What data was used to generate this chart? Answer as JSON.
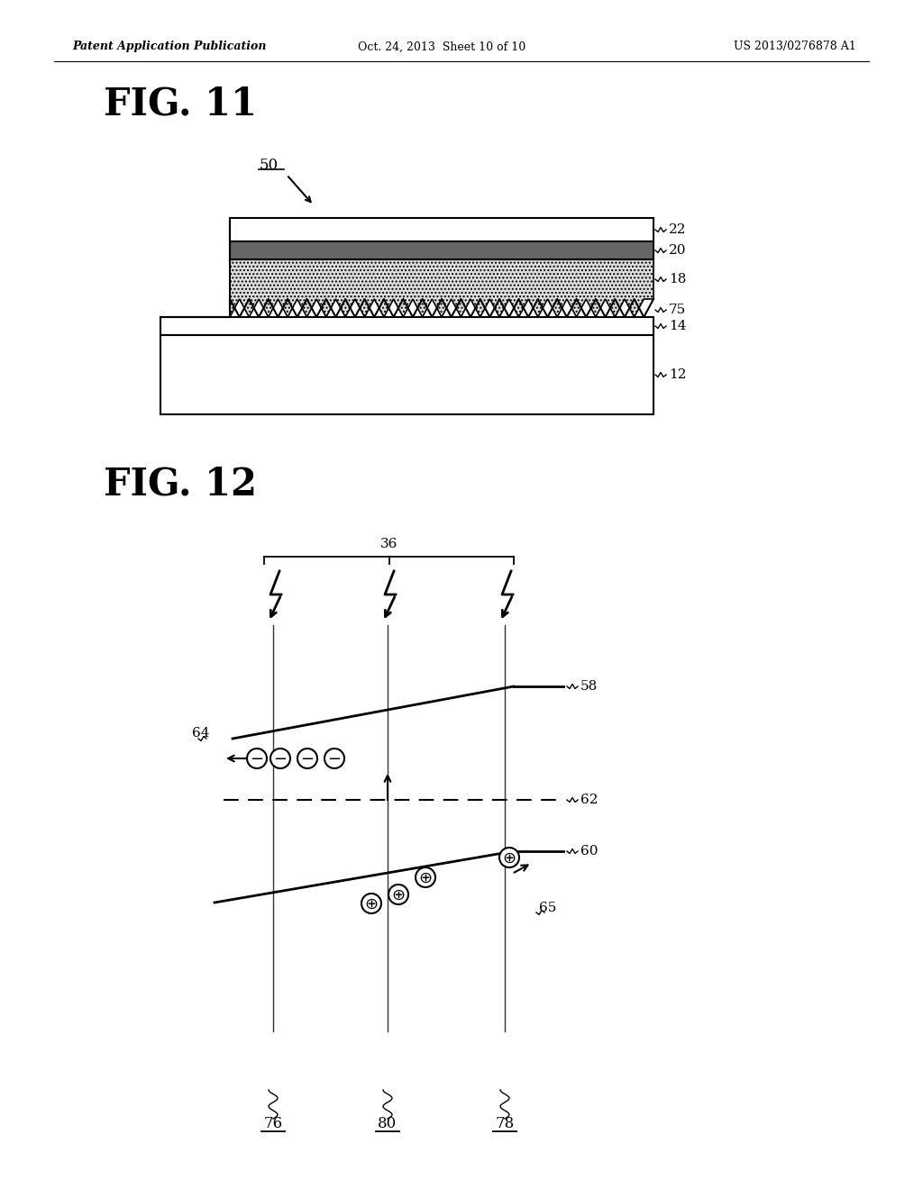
{
  "header_left": "Patent Application Publication",
  "header_mid": "Oct. 24, 2013  Sheet 10 of 10",
  "header_right": "US 2013/0276878 A1",
  "fig11_title": "FIG. 11",
  "fig12_title": "FIG. 12",
  "bg_color": "#ffffff",
  "line_color": "#000000"
}
